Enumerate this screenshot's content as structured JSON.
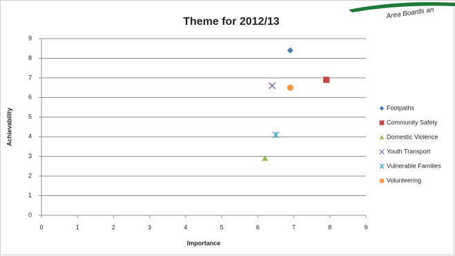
{
  "logo_text": "Area Boards an",
  "chart_data": {
    "type": "scatter",
    "title": "Theme for 2012/13",
    "x_label": "Importance",
    "y_label": "Achievability",
    "xlim": [
      0,
      9
    ],
    "ylim": [
      0,
      9
    ],
    "xticks": [
      0,
      1,
      2,
      3,
      4,
      5,
      6,
      7,
      8,
      9
    ],
    "yticks": [
      0,
      1,
      2,
      3,
      4,
      5,
      6,
      7,
      8,
      9
    ],
    "grid": true,
    "legend": "right",
    "series": [
      {
        "name": "Footpaths",
        "color": "#4a7ebb",
        "marker": "diamond",
        "x": [
          6.9
        ],
        "values": [
          8.4
        ]
      },
      {
        "name": "Community Safety",
        "color": "#be4b48",
        "marker": "square",
        "x": [
          7.9
        ],
        "values": [
          6.9
        ]
      },
      {
        "name": "Domestic Violence",
        "color": "#98b954",
        "marker": "triangle",
        "x": [
          6.2
        ],
        "values": [
          2.9
        ]
      },
      {
        "name": "Youth Transport",
        "color": "#7d60a0",
        "marker": "x",
        "x": [
          6.4
        ],
        "values": [
          6.6
        ]
      },
      {
        "name": "Vulnerable Families",
        "color": "#46aac5",
        "marker": "star",
        "x": [
          6.5
        ],
        "values": [
          4.1
        ]
      },
      {
        "name": "Volunteering",
        "color": "#f79646",
        "marker": "circle",
        "x": [
          6.9
        ],
        "values": [
          6.5
        ]
      }
    ]
  }
}
